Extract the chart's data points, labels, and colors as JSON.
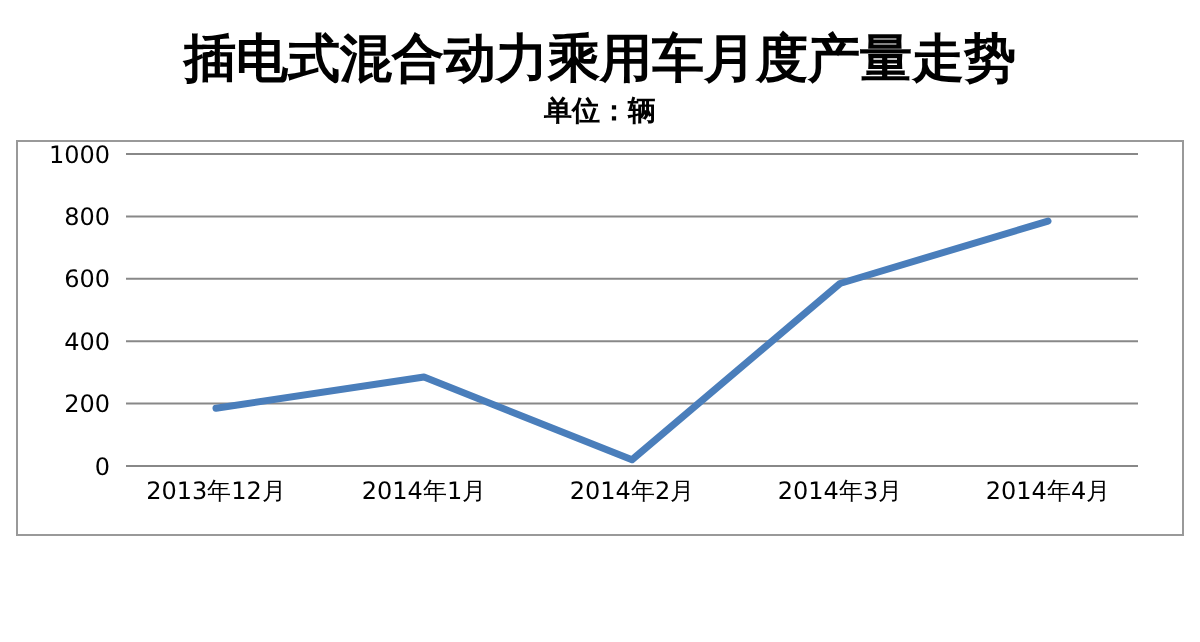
{
  "chart_data": {
    "type": "line",
    "title": "插电式混合动力乘用车月度产量走势",
    "subtitle": "单位：辆",
    "categories": [
      "2013年12月",
      "2014年1月",
      "2014年2月",
      "2014年3月",
      "2014年4月"
    ],
    "series": [
      {
        "color": "#4a7ebb",
        "values": [
          185,
          285,
          20,
          585,
          785
        ]
      }
    ],
    "ylim": [
      0,
      1000
    ],
    "yticks": [
      0,
      200,
      400,
      600,
      800,
      1000
    ],
    "grid": "y",
    "legend": false,
    "marker": "none",
    "line_style": "solid"
  }
}
